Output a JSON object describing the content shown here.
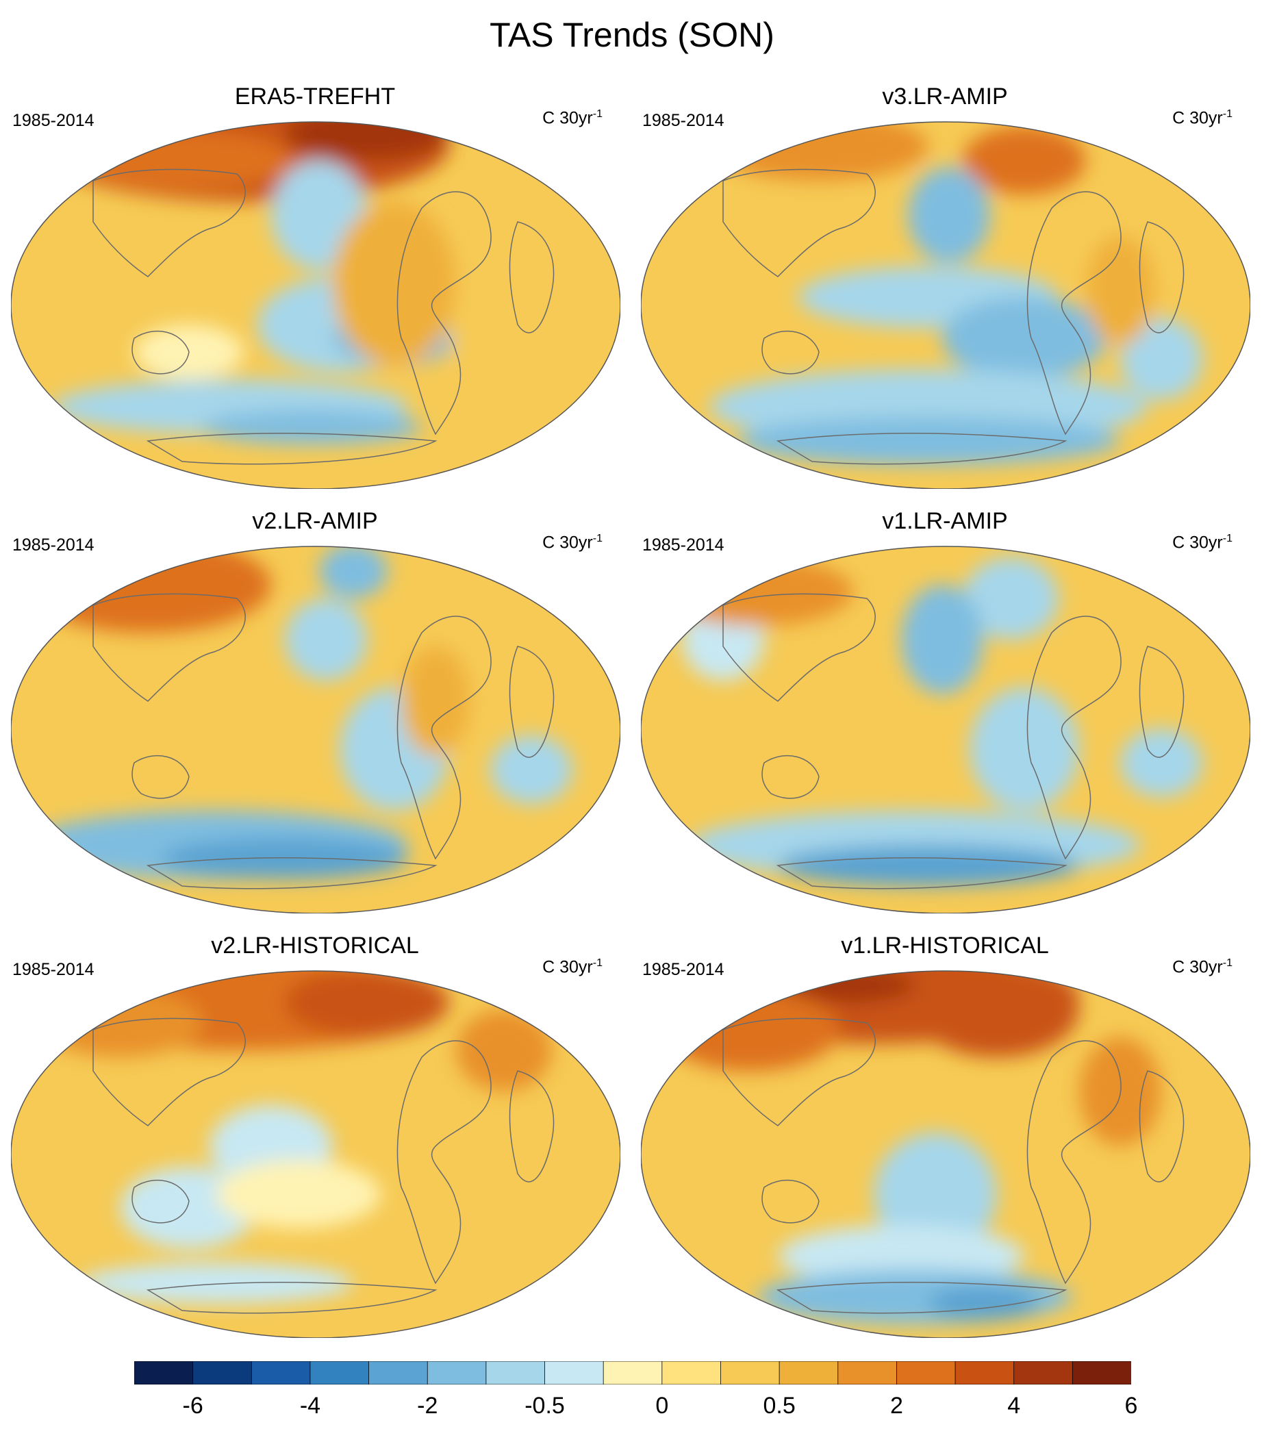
{
  "title": "TAS Trends (SON)",
  "panels": [
    {
      "name": "ERA5-TREFHT",
      "period": "1985-2014",
      "units": "C 30yr",
      "units_exp": "-1",
      "scheme": "era5"
    },
    {
      "name": "v3.LR-AMIP",
      "period": "1985-2014",
      "units": "C 30yr",
      "units_exp": "-1",
      "scheme": "amip3"
    },
    {
      "name": "v2.LR-AMIP",
      "period": "1985-2014",
      "units": "C 30yr",
      "units_exp": "-1",
      "scheme": "amip2"
    },
    {
      "name": "v1.LR-AMIP",
      "period": "1985-2014",
      "units": "C 30yr",
      "units_exp": "-1",
      "scheme": "amip1"
    },
    {
      "name": "v2.LR-HISTORICAL",
      "period": "1985-2014",
      "units": "C 30yr",
      "units_exp": "-1",
      "scheme": "hist2"
    },
    {
      "name": "v1.LR-HISTORICAL",
      "period": "1985-2014",
      "units": "C 30yr",
      "units_exp": "-1",
      "scheme": "hist1"
    }
  ],
  "colorbar": {
    "colors": [
      "#0a1e50",
      "#0b3a7d",
      "#1a5ca8",
      "#3382c0",
      "#5aa3d2",
      "#7fbde0",
      "#a6d6ea",
      "#c8e8f3",
      "#fff3b3",
      "#ffe27e",
      "#f6ca55",
      "#efb03a",
      "#e8912a",
      "#de711b",
      "#c95212",
      "#a3360f",
      "#7a200b"
    ],
    "labels": [
      "-6",
      "-4",
      "-2",
      "-0.5",
      "0",
      "0.5",
      "2",
      "4",
      "6"
    ],
    "label_boundaries": [
      1,
      3,
      5,
      7,
      9,
      11,
      13,
      15,
      17
    ]
  }
}
